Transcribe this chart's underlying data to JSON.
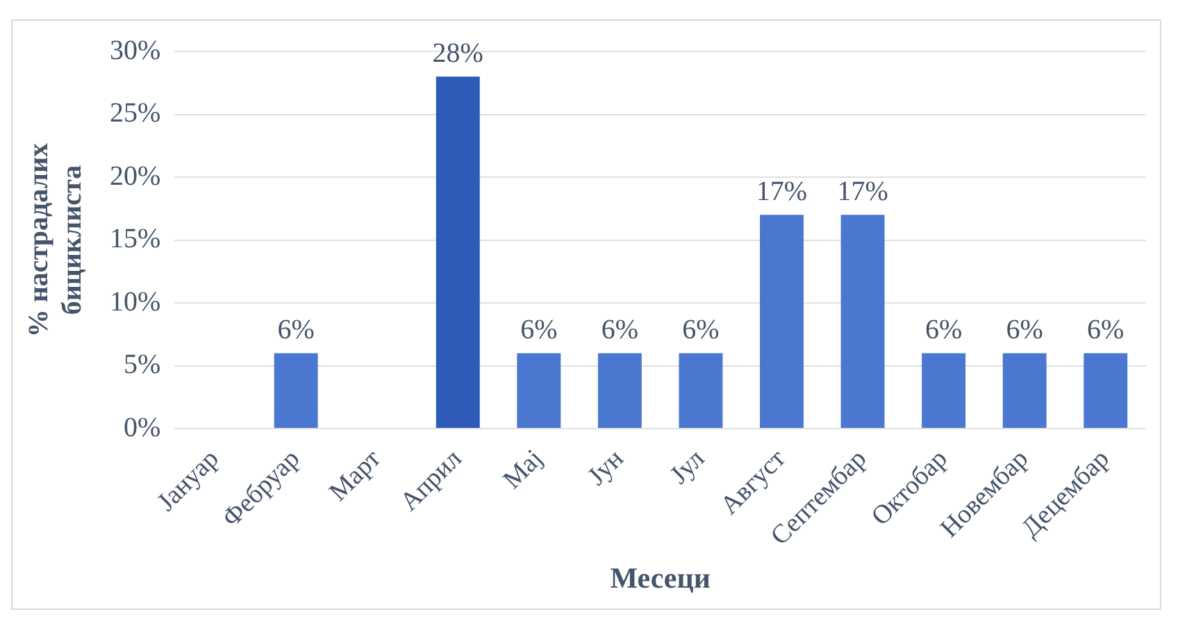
{
  "chart_data": {
    "type": "bar",
    "xlabel": "Месеци",
    "ylabel": "% настрадалих бициклиста",
    "categories": [
      "Јануар",
      "Фебруар",
      "Март",
      "Април",
      "Мај",
      "Јун",
      "Јул",
      "Август",
      "Септембар",
      "Октобар",
      "Новембар",
      "Децембар"
    ],
    "values": [
      0,
      6,
      0,
      28,
      6,
      6,
      6,
      17,
      17,
      6,
      6,
      6
    ],
    "value_labels": [
      null,
      "6%",
      null,
      "28%",
      "6%",
      "6%",
      "6%",
      "17%",
      "17%",
      "6%",
      "6%",
      "6%"
    ],
    "colors": [
      "#4a78d0",
      "#4a78d0",
      "#4a78d0",
      "#2f5bb8",
      "#4a78d0",
      "#4a78d0",
      "#4a78d0",
      "#4a78d0",
      "#4a78d0",
      "#4a78d0",
      "#4a78d0",
      "#4a78d0"
    ],
    "ylim": [
      0,
      30
    ],
    "yticks": [
      {
        "value": 0,
        "label": "0%"
      },
      {
        "value": 5,
        "label": "5%"
      },
      {
        "value": 10,
        "label": "10%"
      },
      {
        "value": 15,
        "label": "15%"
      },
      {
        "value": 20,
        "label": "20%"
      },
      {
        "value": 25,
        "label": "25%"
      },
      {
        "value": 30,
        "label": "30%"
      }
    ],
    "grid": "y",
    "legend": false
  }
}
